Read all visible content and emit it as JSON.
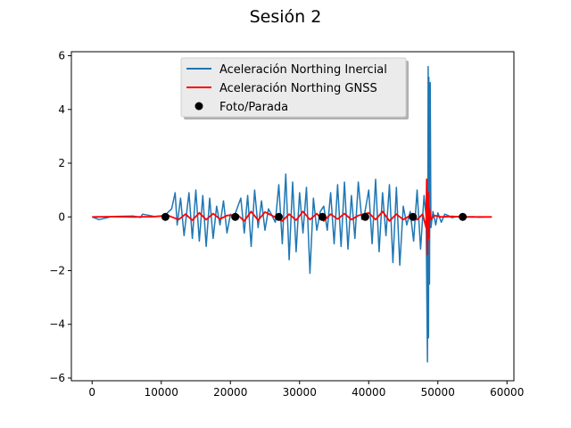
{
  "chart_data": {
    "type": "line",
    "title": "Sesión 2",
    "xlabel": "",
    "ylabel": "",
    "xlim": [
      -3000,
      61000
    ],
    "ylim": [
      -6.1,
      6.15
    ],
    "xticks": [
      0,
      10000,
      20000,
      30000,
      40000,
      50000,
      60000
    ],
    "yticks": [
      -6,
      -4,
      -2,
      0,
      2,
      4,
      6
    ],
    "grid": false,
    "legend_position": "top-center",
    "series": [
      {
        "name": "Aceleración Northing Inercial",
        "color": "#1f77b4",
        "style": "line",
        "x": [
          0,
          1000,
          3000,
          6000,
          7000,
          7300,
          9000,
          10500,
          11500,
          12000,
          12300,
          12800,
          13300,
          14000,
          14500,
          15000,
          15500,
          16000,
          16500,
          17000,
          17500,
          18000,
          18500,
          19000,
          19500,
          20000,
          20500,
          20800,
          21500,
          22000,
          22500,
          23000,
          23500,
          24000,
          24500,
          25000,
          25500,
          26000,
          26500,
          27000,
          27500,
          28000,
          28500,
          29000,
          29500,
          30000,
          30500,
          31000,
          31500,
          32000,
          32500,
          33000,
          33500,
          34000,
          34500,
          35000,
          35500,
          36000,
          36500,
          37000,
          37500,
          38000,
          38500,
          39000,
          39400,
          40000,
          40500,
          41000,
          41500,
          42000,
          42500,
          43000,
          43500,
          44000,
          44500,
          45000,
          45500,
          46000,
          46500,
          47000,
          47500,
          48000,
          48300,
          48500,
          48600,
          48650,
          48700,
          48800,
          48900,
          49000,
          49300,
          49700,
          50000,
          50500,
          51000,
          51500,
          52000,
          53000,
          54000,
          55000,
          56000,
          57000,
          57800
        ],
        "y": [
          0.0,
          -0.1,
          0.02,
          0.03,
          -0.02,
          0.1,
          0.02,
          0.05,
          0.3,
          0.9,
          -0.3,
          0.7,
          -0.7,
          0.9,
          -0.8,
          1.0,
          -0.9,
          0.8,
          -1.1,
          0.7,
          -0.8,
          0.4,
          -0.3,
          0.6,
          -0.6,
          0.1,
          -0.05,
          0.2,
          0.7,
          -0.6,
          0.8,
          -1.1,
          1.0,
          -0.4,
          0.6,
          -0.5,
          0.3,
          0.05,
          -0.2,
          1.2,
          -1.0,
          1.6,
          -1.6,
          1.3,
          -1.3,
          0.9,
          -0.6,
          1.1,
          -2.1,
          0.7,
          -0.5,
          0.2,
          0.4,
          -0.5,
          0.9,
          -1.0,
          1.2,
          -1.1,
          1.3,
          -1.2,
          0.8,
          -0.8,
          1.3,
          -0.1,
          0.1,
          1.0,
          -1.0,
          1.4,
          -1.3,
          0.9,
          -0.7,
          1.2,
          -1.7,
          1.1,
          -1.8,
          0.4,
          -0.3,
          0.2,
          -0.9,
          1.0,
          -1.2,
          0.8,
          0.0,
          -5.4,
          5.6,
          -4.5,
          5.2,
          -2.5,
          5.0,
          -0.4,
          0.2,
          -0.3,
          0.15,
          -0.2,
          0.1,
          0.05,
          -0.03,
          0.02,
          0.0,
          0.01,
          -0.01,
          0.0,
          0.0
        ]
      },
      {
        "name": "Aceleración Northing GNSS",
        "color": "#ff0000",
        "style": "line",
        "x": [
          0,
          3000,
          6000,
          9000,
          11000,
          12500,
          13500,
          14500,
          15500,
          16500,
          17500,
          18500,
          19500,
          21000,
          22000,
          23000,
          24000,
          25000,
          26000,
          27500,
          28500,
          29500,
          30500,
          31500,
          32500,
          33500,
          34500,
          35500,
          36500,
          37500,
          38500,
          40000,
          41000,
          42000,
          43000,
          44000,
          45000,
          46000,
          47000,
          47800,
          48300,
          48400,
          48500,
          48600,
          48700,
          48800,
          49000,
          49500,
          50500,
          52000,
          54000,
          56000,
          57800
        ],
        "y": [
          0.0,
          0.01,
          0.0,
          0.01,
          0.05,
          -0.1,
          0.1,
          -0.12,
          0.15,
          -0.1,
          0.12,
          -0.08,
          0.05,
          0.08,
          -0.15,
          0.2,
          -0.12,
          0.18,
          0.05,
          -0.15,
          0.1,
          -0.12,
          0.2,
          -0.1,
          0.12,
          -0.15,
          0.1,
          -0.08,
          0.12,
          -0.1,
          0.05,
          0.15,
          -0.1,
          0.2,
          -0.15,
          0.1,
          -0.1,
          0.05,
          -0.1,
          0.1,
          -0.4,
          1.4,
          -1.4,
          0.9,
          -0.8,
          0.3,
          -0.1,
          0.05,
          0.0,
          0.02,
          0.0,
          0.0,
          0.0
        ]
      },
      {
        "name": "Foto/Parada",
        "color": "#000000",
        "style": "marker",
        "x": [
          10600,
          20700,
          27000,
          33300,
          39500,
          46400,
          53600
        ],
        "y": [
          0,
          0,
          0,
          0,
          0,
          0,
          0
        ]
      }
    ]
  }
}
